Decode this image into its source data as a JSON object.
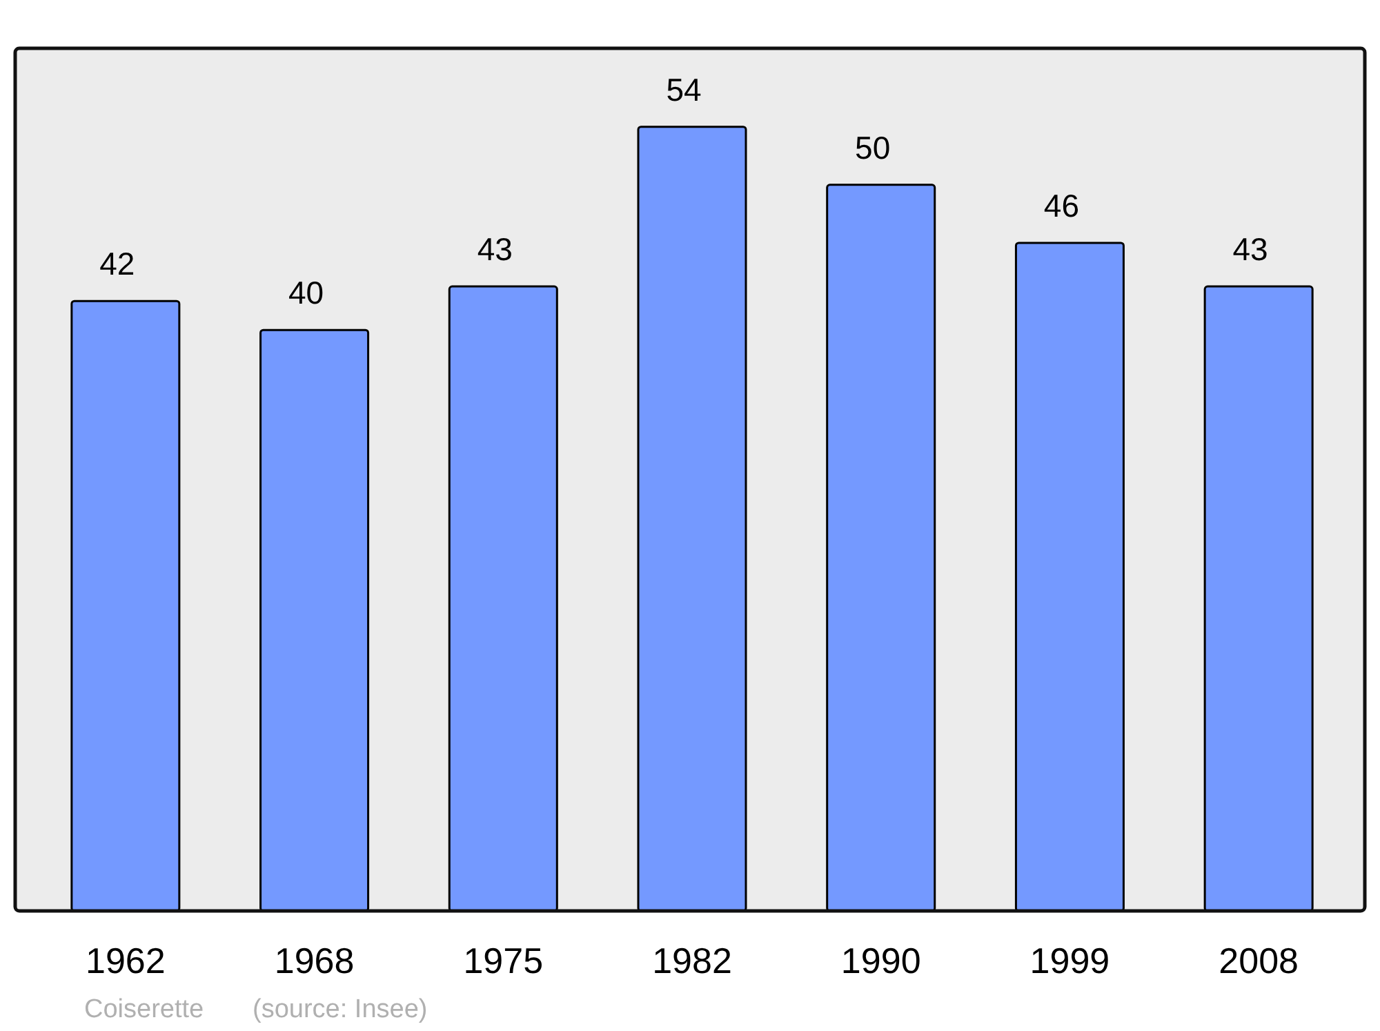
{
  "chart_data": {
    "type": "bar",
    "categories": [
      "1962",
      "1968",
      "1975",
      "1982",
      "1990",
      "1999",
      "2008"
    ],
    "values": [
      42,
      40,
      43,
      54,
      50,
      46,
      43
    ],
    "color": "#7499ff",
    "data_labels": true,
    "grid": false,
    "annotations": [
      "Coiserette",
      "(source: Insee)"
    ]
  }
}
